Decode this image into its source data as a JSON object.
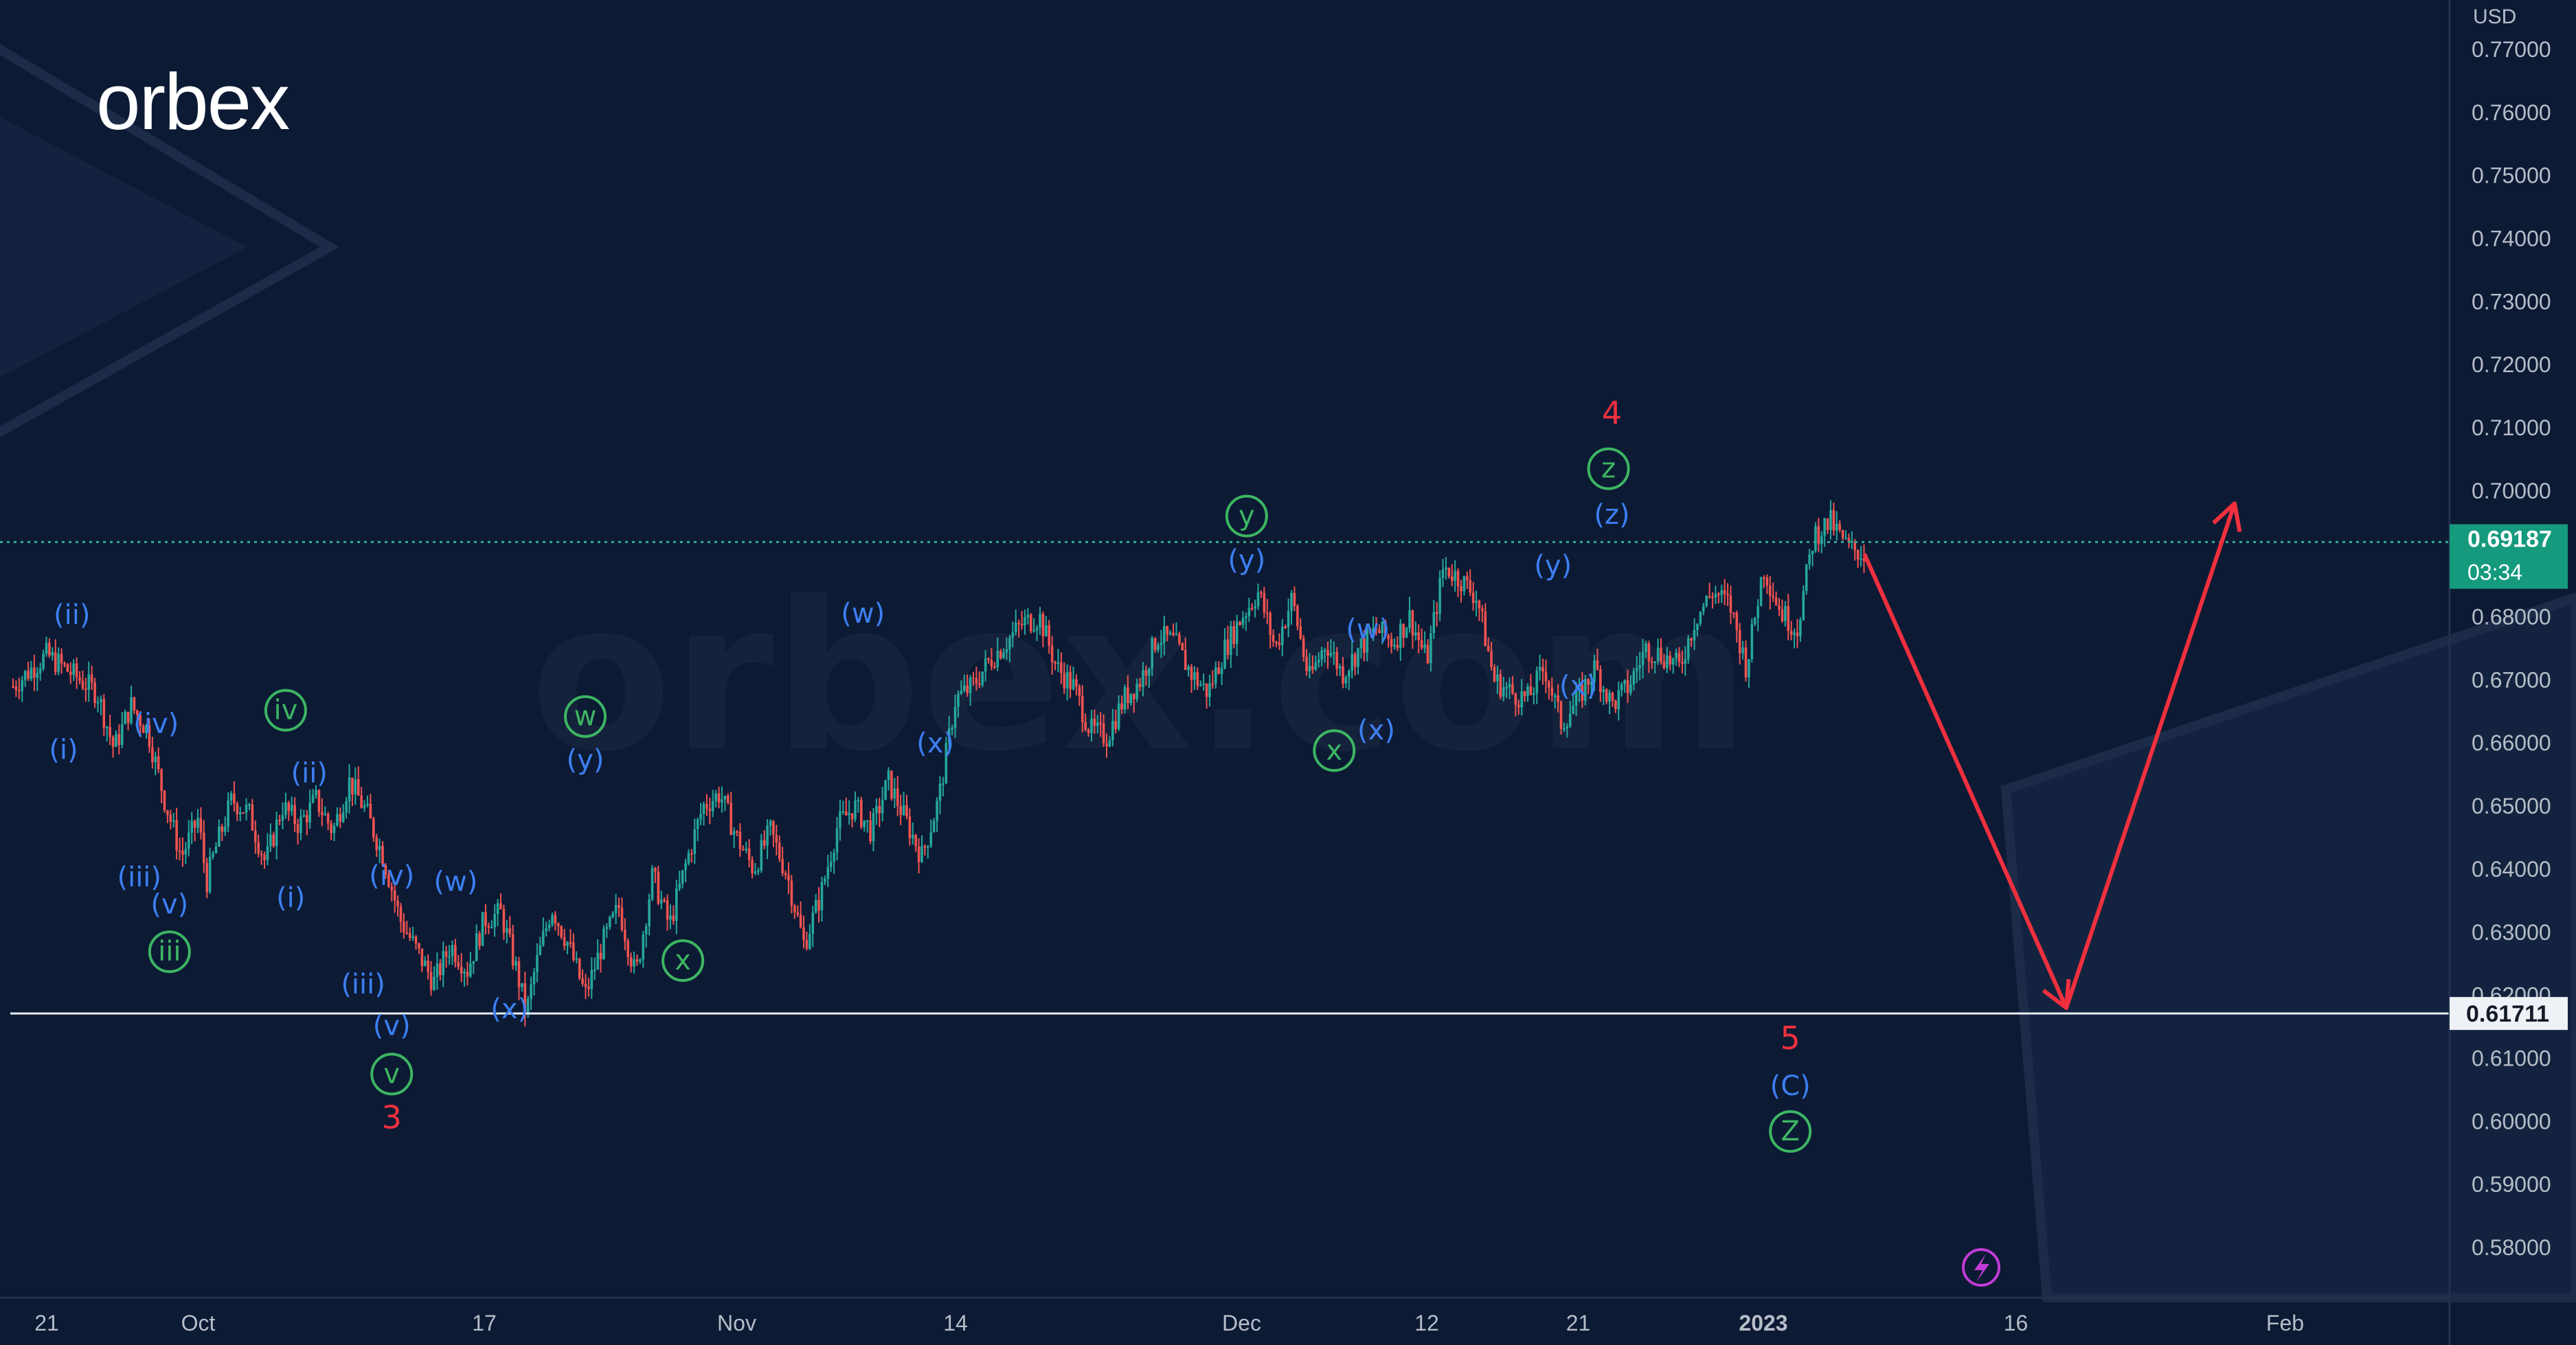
{
  "brand": {
    "logo_text": "orbex",
    "watermark_text": "orbex.com"
  },
  "colors": {
    "background": "#0c1a34",
    "blue": "#3d7ff2",
    "green": "#3db562",
    "red": "#f0303e",
    "price_badge": "#159a7e",
    "up": "#26a69a",
    "down": "#ef5350"
  },
  "chart_data": {
    "type": "candlestick",
    "currency_label": "USD",
    "y_ticks": [
      "0.77000",
      "0.76000",
      "0.75000",
      "0.74000",
      "0.73000",
      "0.72000",
      "0.71000",
      "0.70000",
      "0.69000",
      "0.68000",
      "0.67000",
      "0.66000",
      "0.65000",
      "0.64000",
      "0.63000",
      "0.62000",
      "0.61000",
      "0.60000",
      "0.59000",
      "0.58000"
    ],
    "x_ticks": [
      {
        "label": "21",
        "day": 0
      },
      {
        "label": "Oct",
        "day": 9
      },
      {
        "label": "17",
        "day": 26
      },
      {
        "label": "Nov",
        "day": 41
      },
      {
        "label": "14",
        "day": 54
      },
      {
        "label": "Dec",
        "day": 71
      },
      {
        "label": "12",
        "day": 82
      },
      {
        "label": "21",
        "day": 91
      },
      {
        "label": "2023",
        "day": 102
      },
      {
        "label": "16",
        "day": 117
      },
      {
        "label": "Feb",
        "day": 133
      }
    ],
    "current_price": {
      "value": 0.69187,
      "label": "0.69187",
      "countdown": "03:34"
    },
    "support_line": {
      "value": 0.61711,
      "label": "0.61711"
    },
    "price_path": [
      [
        -2,
        0.669
      ],
      [
        0,
        0.674
      ],
      [
        3,
        0.668
      ],
      [
        4,
        0.659
      ],
      [
        5,
        0.666
      ],
      [
        6,
        0.662
      ],
      [
        7,
        0.651
      ],
      [
        8,
        0.642
      ],
      [
        9,
        0.648
      ],
      [
        9.5,
        0.638
      ],
      [
        10,
        0.643
      ],
      [
        11,
        0.651
      ],
      [
        12,
        0.649
      ],
      [
        13,
        0.641
      ],
      [
        14,
        0.65
      ],
      [
        15,
        0.647
      ],
      [
        16,
        0.651
      ],
      [
        17,
        0.646
      ],
      [
        18,
        0.654
      ],
      [
        19,
        0.649
      ],
      [
        20,
        0.642
      ],
      [
        21,
        0.632
      ],
      [
        22,
        0.627
      ],
      [
        23,
        0.622
      ],
      [
        24,
        0.628
      ],
      [
        25,
        0.624
      ],
      [
        26,
        0.632
      ],
      [
        27,
        0.633
      ],
      [
        28,
        0.623
      ],
      [
        28.5,
        0.617
      ],
      [
        29,
        0.624
      ],
      [
        30,
        0.634
      ],
      [
        31,
        0.628
      ],
      [
        32,
        0.62
      ],
      [
        33,
        0.628
      ],
      [
        34,
        0.634
      ],
      [
        35,
        0.623
      ],
      [
        36,
        0.639
      ],
      [
        37,
        0.631
      ],
      [
        38,
        0.641
      ],
      [
        39,
        0.65
      ],
      [
        40,
        0.652
      ],
      [
        41,
        0.645
      ],
      [
        42,
        0.64
      ],
      [
        43,
        0.646
      ],
      [
        44,
        0.639
      ],
      [
        45,
        0.628
      ],
      [
        46,
        0.636
      ],
      [
        47,
        0.647
      ],
      [
        48,
        0.65
      ],
      [
        49,
        0.646
      ],
      [
        50,
        0.654
      ],
      [
        51,
        0.648
      ],
      [
        52,
        0.642
      ],
      [
        53,
        0.651
      ],
      [
        54,
        0.667
      ],
      [
        55,
        0.669
      ],
      [
        56,
        0.673
      ],
      [
        57,
        0.676
      ],
      [
        58,
        0.679
      ],
      [
        59,
        0.68
      ],
      [
        60,
        0.672
      ],
      [
        61,
        0.669
      ],
      [
        62,
        0.662
      ],
      [
        63,
        0.661
      ],
      [
        64,
        0.667
      ],
      [
        65,
        0.67
      ],
      [
        66,
        0.677
      ],
      [
        67,
        0.676
      ],
      [
        68,
        0.671
      ],
      [
        69,
        0.668
      ],
      [
        70,
        0.675
      ],
      [
        71,
        0.68
      ],
      [
        72,
        0.684
      ],
      [
        73,
        0.675
      ],
      [
        74,
        0.683
      ],
      [
        75,
        0.67
      ],
      [
        76,
        0.676
      ],
      [
        77,
        0.671
      ],
      [
        78,
        0.675
      ],
      [
        79,
        0.678
      ],
      [
        80,
        0.676
      ],
      [
        81,
        0.68
      ],
      [
        82,
        0.673
      ],
      [
        83,
        0.688
      ],
      [
        84,
        0.686
      ],
      [
        85,
        0.683
      ],
      [
        86,
        0.67
      ],
      [
        87,
        0.668
      ],
      [
        88,
        0.667
      ],
      [
        89,
        0.672
      ],
      [
        90,
        0.663
      ],
      [
        91,
        0.667
      ],
      [
        92,
        0.672
      ],
      [
        93,
        0.666
      ],
      [
        94,
        0.669
      ],
      [
        95,
        0.675
      ],
      [
        96,
        0.674
      ],
      [
        97,
        0.672
      ],
      [
        98,
        0.68
      ],
      [
        99,
        0.684
      ],
      [
        100,
        0.682
      ],
      [
        101,
        0.672
      ],
      [
        102,
        0.688
      ],
      [
        103,
        0.681
      ],
      [
        104,
        0.678
      ],
      [
        105,
        0.693
      ],
      [
        106,
        0.695
      ],
      [
        107,
        0.691
      ],
      [
        108,
        0.69
      ]
    ],
    "projection": [
      [
        108,
        0.69
      ],
      [
        120,
        0.618
      ],
      [
        130,
        0.698
      ]
    ],
    "labels": [
      {
        "text": "(ii)",
        "color": "blue",
        "circled": false,
        "day": 1.5,
        "price": 0.6803
      },
      {
        "text": "(i)",
        "color": "blue",
        "circled": false,
        "day": 1,
        "price": 0.6589
      },
      {
        "text": "(iv)",
        "color": "blue",
        "circled": false,
        "day": 6.5,
        "price": 0.663
      },
      {
        "text": "(iii)",
        "color": "blue",
        "circled": false,
        "day": 5.5,
        "price": 0.6387
      },
      {
        "text": "(v)",
        "color": "blue",
        "circled": false,
        "day": 7.3,
        "price": 0.6344
      },
      {
        "text": "iii",
        "color": "green",
        "circled": true,
        "day": 7.3,
        "price": 0.6269
      },
      {
        "text": "iv",
        "color": "green",
        "circled": true,
        "day": 14.2,
        "price": 0.6652
      },
      {
        "text": "(ii)",
        "color": "blue",
        "circled": false,
        "day": 15.6,
        "price": 0.6552
      },
      {
        "text": "(i)",
        "color": "blue",
        "circled": false,
        "day": 14.5,
        "price": 0.6354
      },
      {
        "text": "(iv)",
        "color": "blue",
        "circled": false,
        "day": 20.5,
        "price": 0.6389
      },
      {
        "text": "(iii)",
        "color": "blue",
        "circled": false,
        "day": 18.8,
        "price": 0.6217
      },
      {
        "text": "(v)",
        "color": "blue",
        "circled": false,
        "day": 20.5,
        "price": 0.6151
      },
      {
        "text": "v",
        "color": "green",
        "circled": true,
        "day": 20.5,
        "price": 0.6075
      },
      {
        "text": "3",
        "color": "red",
        "circled": false,
        "day": 20.5,
        "price": 0.6003
      },
      {
        "text": "(w)",
        "color": "blue",
        "circled": false,
        "day": 24.3,
        "price": 0.638
      },
      {
        "text": "(x)",
        "color": "blue",
        "circled": false,
        "day": 27.5,
        "price": 0.6178
      },
      {
        "text": "w",
        "color": "green",
        "circled": true,
        "day": 32,
        "price": 0.6642
      },
      {
        "text": "(y)",
        "color": "blue",
        "circled": false,
        "day": 32,
        "price": 0.6573
      },
      {
        "text": "x",
        "color": "green",
        "circled": true,
        "day": 37.8,
        "price": 0.6255
      },
      {
        "text": "(w)",
        "color": "blue",
        "circled": false,
        "day": 48.5,
        "price": 0.6805
      },
      {
        "text": "(x)",
        "color": "blue",
        "circled": false,
        "day": 52.8,
        "price": 0.6599
      },
      {
        "text": "y",
        "color": "green",
        "circled": true,
        "day": 71.3,
        "price": 0.696
      },
      {
        "text": "(y)",
        "color": "blue",
        "circled": false,
        "day": 71.3,
        "price": 0.689
      },
      {
        "text": "(w)",
        "color": "blue",
        "circled": false,
        "day": 78.5,
        "price": 0.678
      },
      {
        "text": "(x)",
        "color": "blue",
        "circled": false,
        "day": 79,
        "price": 0.662
      },
      {
        "text": "x",
        "color": "green",
        "circled": true,
        "day": 76.5,
        "price": 0.6588
      },
      {
        "text": "(y)",
        "color": "blue",
        "circled": false,
        "day": 89.5,
        "price": 0.6881
      },
      {
        "text": "(x)",
        "color": "blue",
        "circled": false,
        "day": 91,
        "price": 0.669
      },
      {
        "text": "(z)",
        "color": "blue",
        "circled": false,
        "day": 93,
        "price": 0.6962
      },
      {
        "text": "z",
        "color": "green",
        "circled": true,
        "day": 92.8,
        "price": 0.7035
      },
      {
        "text": "4",
        "color": "red",
        "circled": false,
        "day": 93,
        "price": 0.712
      },
      {
        "text": "5",
        "color": "red",
        "circled": false,
        "day": 103.6,
        "price": 0.6129
      },
      {
        "text": "(C)",
        "color": "blue",
        "circled": false,
        "day": 103.6,
        "price": 0.6056
      },
      {
        "text": "Z",
        "color": "green",
        "circled": true,
        "day": 103.6,
        "price": 0.5984
      }
    ]
  }
}
